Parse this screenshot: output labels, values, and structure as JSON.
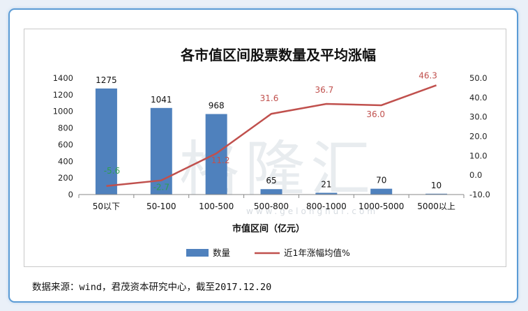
{
  "watermark": {
    "text": "格隆汇",
    "sub": "www.gelonghui.com"
  },
  "source": "数据来源：wind，君茂资本研究中心，截至2017.12.20",
  "chart_data": {
    "type": "bar",
    "title": "各市值区间股票数量及平均涨幅",
    "xlabel": "市值区间（亿元）",
    "categories": [
      "50以下",
      "50-100",
      "100-500",
      "500-800",
      "800-1000",
      "1000-5000",
      "5000以上"
    ],
    "series": [
      {
        "name": "数量",
        "type": "bar",
        "axis": "left",
        "color": "#4f81bd",
        "values": [
          1275,
          1041,
          968,
          65,
          21,
          70,
          10
        ]
      },
      {
        "name": "近1年涨幅均值%",
        "type": "line",
        "axis": "right",
        "color": "#c0504d",
        "label_color_negative": "#2e9e4f",
        "values": [
          -5.6,
          -2.7,
          11.2,
          31.6,
          36.7,
          36.0,
          46.3
        ]
      }
    ],
    "ylim_left": [
      0,
      1400
    ],
    "yticks_left": [
      0,
      200,
      400,
      600,
      800,
      1000,
      1200,
      1400
    ],
    "ylim_right": [
      -10,
      50
    ],
    "yticks_right": [
      "-10.0",
      "0.0",
      "10.0",
      "20.0",
      "30.0",
      "40.0",
      "50.0"
    ],
    "legend_position": "bottom",
    "grid": false
  }
}
